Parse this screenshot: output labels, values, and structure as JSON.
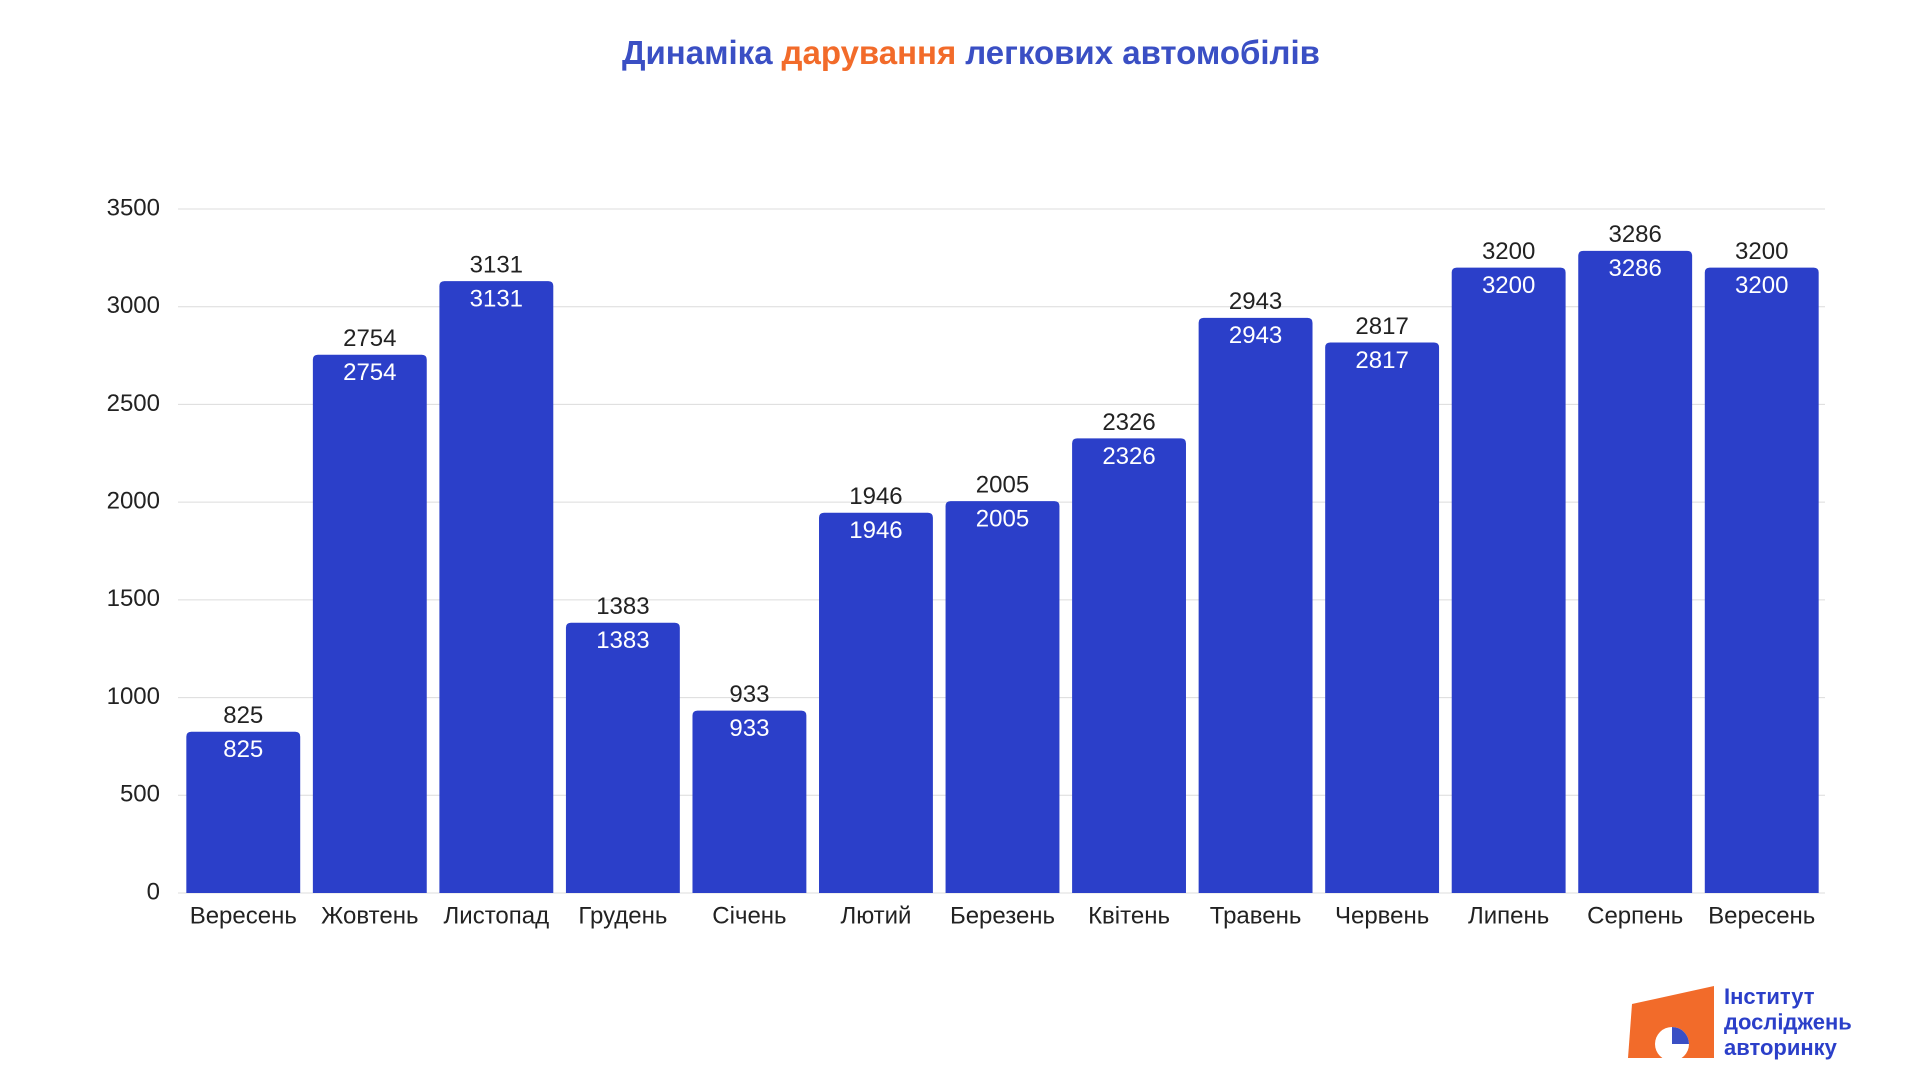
{
  "chart_data": {
    "type": "bar",
    "title_parts": [
      {
        "text": "Динаміка",
        "color": "#3a4fc4"
      },
      {
        "text": "дарування",
        "color": "#f26b2a"
      },
      {
        "text": "легкових автомобілів",
        "color": "#3a4fc4"
      }
    ],
    "categories": [
      "Вересень",
      "Жовтень",
      "Листопад",
      "Грудень",
      "Січень",
      "Лютий",
      "Березень",
      "Квітень",
      "Травень",
      "Червень",
      "Липень",
      "Серпень",
      "Вересень"
    ],
    "values": [
      825,
      2754,
      3131,
      1383,
      933,
      1946,
      2005,
      2326,
      2943,
      2817,
      3200,
      3286,
      3200
    ],
    "color": "#2b3fc9",
    "ylim": [
      0,
      3500
    ],
    "yticks": [
      0,
      500,
      1000,
      1500,
      2000,
      2500,
      3000,
      3500
    ],
    "grid": true
  },
  "logo": {
    "lines": [
      "Інститут",
      "досліджень",
      "авторинку"
    ]
  }
}
